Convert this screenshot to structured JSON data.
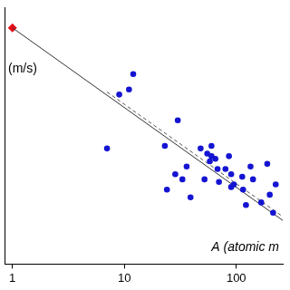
{
  "chart_data": {
    "type": "scatter",
    "xlabel": "A (atomic m",
    "ylabel": "(m/s)",
    "log": "x",
    "xlim": [
      0.85,
      260
    ],
    "xticks": [
      1,
      10,
      100
    ],
    "ylim": [
      0,
      100
    ],
    "tick_labels": "x",
    "grid": false,
    "series": [
      {
        "type": "scatter",
        "color": "#1414d2",
        "marker": "circle",
        "x": [
          9,
          11,
          12,
          7,
          23,
          24,
          28.5,
          33,
          30,
          39,
          48,
          55,
          60,
          60,
          65,
          58,
          68,
          52,
          70,
          86,
          80,
          90,
          90,
          95,
          113,
          115,
          134,
          141,
          167,
          189,
          199,
          225,
          213,
          122,
          36
        ],
        "values": [
          66,
          68,
          74,
          45,
          46,
          29,
          35,
          33,
          56,
          26,
          45,
          43,
          46,
          42,
          41,
          40,
          37,
          33,
          32,
          42,
          37,
          35,
          30,
          31,
          34,
          29,
          38,
          33,
          24,
          39,
          27,
          31,
          20,
          23,
          38
        ]
      },
      {
        "type": "line",
        "color": "#333333",
        "marker": "none",
        "line_style": "solid",
        "x": [
          1,
          260
        ],
        "values": [
          92,
          17
        ]
      },
      {
        "type": "line",
        "color": "#555555",
        "marker": "none",
        "line_style": "dashed",
        "x": [
          7,
          260
        ],
        "values": [
          67,
          18.5
        ]
      },
      {
        "type": "scatter",
        "color": "#e8101a",
        "marker": "diamond",
        "x": [
          1
        ],
        "values": [
          92
        ]
      }
    ]
  }
}
